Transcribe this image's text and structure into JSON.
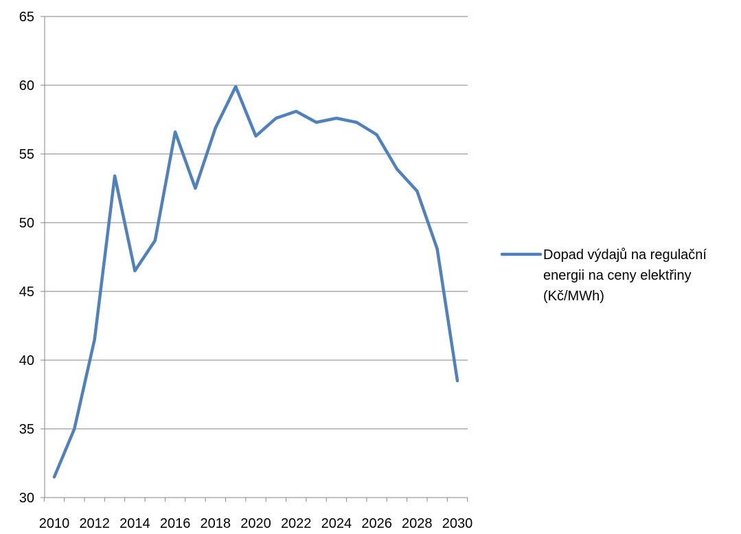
{
  "chart_data": {
    "type": "line",
    "x": [
      2010,
      2011,
      2012,
      2013,
      2014,
      2015,
      2016,
      2017,
      2018,
      2019,
      2020,
      2021,
      2022,
      2023,
      2024,
      2025,
      2026,
      2027,
      2028,
      2029,
      2030
    ],
    "series": [
      {
        "name": "Dopad výdajů na regulační energii na ceny elektřiny (Kč/MWh)",
        "legend_lines": [
          "Dopad výdajů na regulační",
          "energii na ceny elektřiny",
          "(Kč/MWh)"
        ],
        "values": [
          31.5,
          35.0,
          41.5,
          53.4,
          46.5,
          48.7,
          56.6,
          52.5,
          56.9,
          59.9,
          56.3,
          57.6,
          58.1,
          57.3,
          57.6,
          57.3,
          56.4,
          53.9,
          52.3,
          48.1,
          38.5
        ],
        "color": "#4F81BD"
      }
    ],
    "ylim": [
      30,
      65
    ],
    "yticks": [
      30,
      35,
      40,
      45,
      50,
      55,
      60,
      65
    ],
    "xticks": [
      2010,
      2012,
      2014,
      2016,
      2018,
      2020,
      2022,
      2024,
      2026,
      2028,
      2030
    ],
    "grid": true,
    "legend_position": "right",
    "title": "",
    "xlabel": "",
    "ylabel": ""
  }
}
